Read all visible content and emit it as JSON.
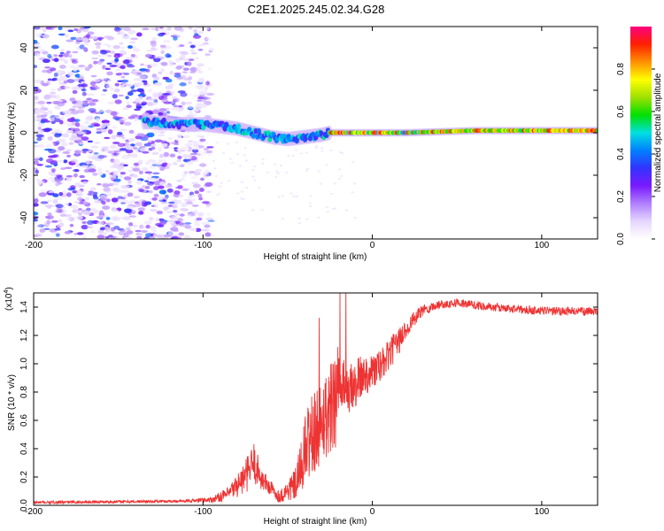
{
  "title": "C2E1.2025.245.02.34.G28",
  "chart_data": [
    {
      "type": "heatmap",
      "name": "spectrogram",
      "xlabel": "Height of straight line (km)",
      "ylabel": "Frequency (Hz)",
      "xlim": [
        -200,
        133
      ],
      "ylim": [
        -50,
        50
      ],
      "xticks": [
        -200,
        -100,
        0,
        100
      ],
      "yticks": [
        40,
        20,
        0,
        -20,
        -40
      ],
      "colorbar": {
        "label": "Normalized spectral amplitude",
        "range": [
          0,
          1
        ],
        "ticks": [
          0.0,
          0.2,
          0.4,
          0.6,
          0.8
        ],
        "tick_labels": [
          "0.0",
          "0.2",
          "0.4",
          "0.6",
          "0.8"
        ],
        "colors": [
          "#ffffff",
          "#e6d6ff",
          "#b080ff",
          "#7a1aff",
          "#3333ff",
          "#0080ff",
          "#00e0e0",
          "#00e000",
          "#a0e000",
          "#ffff00",
          "#ff9000",
          "#ff2000",
          "#ff0080"
        ]
      },
      "ridge": [
        {
          "h": -130,
          "f": 5
        },
        {
          "h": -110,
          "f": 4
        },
        {
          "h": -100,
          "f": 4
        },
        {
          "h": -90,
          "f": 3
        },
        {
          "h": -80,
          "f": 2
        },
        {
          "h": -70,
          "f": 0
        },
        {
          "h": -60,
          "f": -2
        },
        {
          "h": -50,
          "f": -3
        },
        {
          "h": -40,
          "f": -2
        },
        {
          "h": -30,
          "f": -1
        },
        {
          "h": -25,
          "f": 0
        },
        {
          "h": -10,
          "f": 0
        },
        {
          "h": 0,
          "f": 0
        },
        {
          "h": 20,
          "f": 0
        },
        {
          "h": 60,
          "f": 1
        },
        {
          "h": 100,
          "f": 1
        },
        {
          "h": 133,
          "f": 1
        }
      ]
    },
    {
      "type": "line",
      "name": "snr",
      "xlabel": "Height of straight line (km)",
      "ylabel": "SNR (10 * v/v)",
      "yscale_label": "(x10",
      "yscale_exp": "4",
      "xlim": [
        -200,
        133
      ],
      "ylim": [
        0,
        1.5
      ],
      "xticks": [
        -200,
        -100,
        0,
        100
      ],
      "yticks": [
        0.0,
        0.2,
        0.4,
        0.6,
        0.8,
        1.0,
        1.2,
        1.4
      ],
      "ytick_labels": [
        "0.0",
        "0.2",
        "0.4",
        "0.6",
        "0.8",
        "1.0",
        "1.2",
        "1.4"
      ],
      "color": "#ee3333",
      "envelope": [
        {
          "x": -200,
          "y": 0.02,
          "noise": 0.01
        },
        {
          "x": -110,
          "y": 0.03,
          "noise": 0.01
        },
        {
          "x": -95,
          "y": 0.04,
          "noise": 0.02
        },
        {
          "x": -85,
          "y": 0.08,
          "noise": 0.05
        },
        {
          "x": -75,
          "y": 0.2,
          "noise": 0.12
        },
        {
          "x": -70,
          "y": 0.3,
          "noise": 0.15
        },
        {
          "x": -65,
          "y": 0.18,
          "noise": 0.08
        },
        {
          "x": -55,
          "y": 0.06,
          "noise": 0.04
        },
        {
          "x": -45,
          "y": 0.15,
          "noise": 0.12
        },
        {
          "x": -38,
          "y": 0.45,
          "noise": 0.3
        },
        {
          "x": -30,
          "y": 0.6,
          "noise": 0.3
        },
        {
          "x": -22,
          "y": 0.75,
          "noise": 0.35
        },
        {
          "x": -15,
          "y": 0.8,
          "noise": 0.2
        },
        {
          "x": -5,
          "y": 0.92,
          "noise": 0.15
        },
        {
          "x": 5,
          "y": 0.98,
          "noise": 0.12
        },
        {
          "x": 15,
          "y": 1.15,
          "noise": 0.1
        },
        {
          "x": 22,
          "y": 1.28,
          "noise": 0.06
        },
        {
          "x": 30,
          "y": 1.38,
          "noise": 0.04
        },
        {
          "x": 40,
          "y": 1.42,
          "noise": 0.03
        },
        {
          "x": 50,
          "y": 1.43,
          "noise": 0.03
        },
        {
          "x": 70,
          "y": 1.4,
          "noise": 0.03
        },
        {
          "x": 90,
          "y": 1.38,
          "noise": 0.03
        },
        {
          "x": 110,
          "y": 1.37,
          "noise": 0.03
        },
        {
          "x": 133,
          "y": 1.37,
          "noise": 0.03
        }
      ]
    }
  ]
}
